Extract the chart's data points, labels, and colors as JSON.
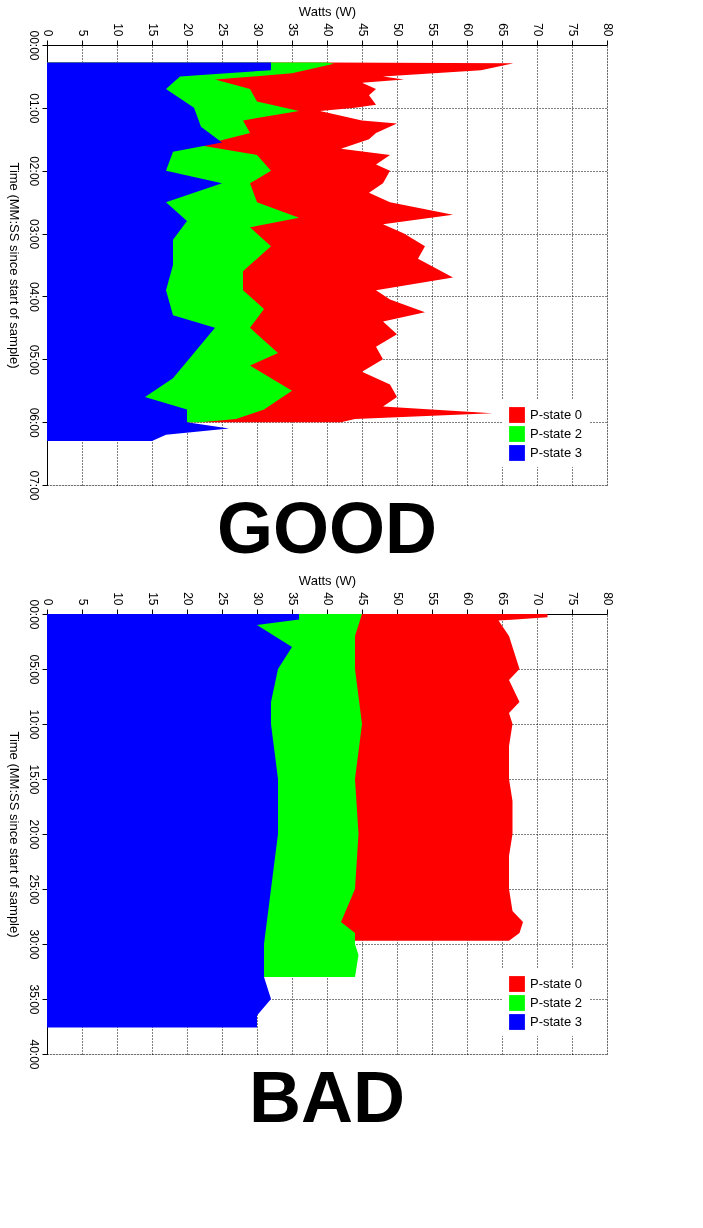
{
  "chart_data": [
    {
      "type": "area",
      "orientation": "horizontal",
      "title": "GOOD",
      "xlabel": "Watts (W)",
      "ylabel": "Time (MM:SS since start of sample)",
      "xlim": [
        0,
        80
      ],
      "xticks": [
        0,
        5,
        10,
        15,
        20,
        25,
        30,
        35,
        40,
        45,
        50,
        55,
        60,
        65,
        70,
        75,
        80
      ],
      "ylim": [
        7,
        0
      ],
      "yticks": [
        {
          "value": 0,
          "label": "00:00"
        },
        {
          "value": 1,
          "label": "01:00"
        },
        {
          "value": 2,
          "label": "02:00"
        },
        {
          "value": 3,
          "label": "03:00"
        },
        {
          "value": 4,
          "label": "04:00"
        },
        {
          "value": 5,
          "label": "05:00"
        },
        {
          "value": 6,
          "label": "06:00"
        },
        {
          "value": 7,
          "label": "07:00"
        }
      ],
      "grid": true,
      "legend": "bottom right",
      "series": [
        {
          "name": "P-state 0",
          "color": "#ff0000",
          "x": [
            0.28,
            0.29,
            0.33,
            0.4,
            0.5,
            0.55,
            0.6,
            0.7,
            0.8,
            0.95,
            1.0,
            1.05,
            1.2,
            1.25,
            1.4,
            1.5,
            1.65,
            1.75,
            1.9,
            2.0,
            2.2,
            2.35,
            2.5,
            2.7,
            2.85,
            3.0,
            3.2,
            3.4,
            3.7,
            3.9,
            4.05,
            4.25,
            4.4,
            4.6,
            4.8,
            5.0,
            5.2,
            5.4,
            5.6,
            5.75,
            5.86,
            5.95,
            6.0
          ],
          "values": [
            40,
            66.6,
            65,
            62,
            48,
            51,
            45,
            47,
            46,
            47,
            44,
            39,
            45,
            50,
            47,
            46,
            42,
            49,
            47,
            49,
            48,
            46,
            49,
            58,
            48,
            51,
            54,
            53,
            58,
            47,
            49,
            54,
            48,
            50,
            47,
            48,
            45,
            49,
            50,
            48,
            63.6,
            44,
            42
          ]
        },
        {
          "name": "P-state 2",
          "color": "#00ff00",
          "x": [
            0.28,
            0.3,
            0.45,
            0.55,
            0.7,
            0.9,
            1.05,
            1.2,
            1.4,
            1.6,
            1.75,
            2.0,
            2.2,
            2.5,
            2.75,
            2.9,
            3.2,
            3.6,
            3.9,
            4.2,
            4.5,
            4.9,
            5.1,
            5.5,
            5.8,
            5.95,
            6.0
          ],
          "values": [
            40,
            41,
            35,
            24,
            29,
            30,
            36,
            28,
            29,
            22,
            30,
            32,
            29,
            30,
            36,
            29,
            32,
            28,
            28,
            31,
            29,
            33,
            29,
            35,
            31,
            27,
            22
          ]
        },
        {
          "name": "P-state 3",
          "color": "#0000ff",
          "x": [
            0.28,
            0.29,
            0.4,
            0.5,
            0.7,
            1.0,
            1.3,
            1.55,
            1.7,
            2.0,
            2.2,
            2.5,
            2.8,
            3.1,
            3.5,
            3.9,
            4.3,
            4.5,
            4.9,
            5.3,
            5.6,
            5.8,
            6.0,
            6.1,
            6.2,
            6.3
          ],
          "values": [
            32,
            32,
            32,
            19,
            17,
            21,
            22,
            25,
            18,
            17,
            25,
            17,
            20,
            18,
            18,
            17,
            18,
            24,
            21,
            18,
            14,
            20,
            20,
            26,
            17,
            15
          ]
        }
      ]
    },
    {
      "type": "area",
      "orientation": "horizontal",
      "title": "BAD",
      "xlabel": "Watts (W)",
      "ylabel": "Time (MM:SS since start of sample)",
      "xlim": [
        0,
        80
      ],
      "xticks": [
        0,
        5,
        10,
        15,
        20,
        25,
        30,
        35,
        40,
        45,
        50,
        55,
        60,
        65,
        70,
        75,
        80
      ],
      "ylim": [
        40,
        0
      ],
      "yticks": [
        {
          "value": 0,
          "label": "00:00"
        },
        {
          "value": 5,
          "label": "05:00"
        },
        {
          "value": 10,
          "label": "10:00"
        },
        {
          "value": 15,
          "label": "15:00"
        },
        {
          "value": 20,
          "label": "20:00"
        },
        {
          "value": 25,
          "label": "25:00"
        },
        {
          "value": 30,
          "label": "30:00"
        },
        {
          "value": 35,
          "label": "35:00"
        },
        {
          "value": 40,
          "label": "40:00"
        }
      ],
      "grid": true,
      "legend": "bottom right",
      "series": [
        {
          "name": "P-state 0",
          "color": "#ff0000",
          "x": [
            0,
            0.3,
            0.6,
            2,
            4,
            5,
            6,
            8,
            9,
            10,
            12,
            15,
            17,
            20,
            22,
            25,
            27,
            28,
            29,
            29.7
          ],
          "values": [
            71.5,
            71.5,
            64.5,
            66,
            67,
            67.5,
            66,
            67.5,
            66,
            66.5,
            66,
            66,
            66.5,
            66.5,
            66,
            66,
            66.5,
            68,
            67.5,
            66
          ]
        },
        {
          "name": "P-state 2",
          "color": "#00ff00",
          "x": [
            0,
            2,
            5,
            10,
            15,
            20,
            25,
            28,
            29,
            30,
            31,
            33
          ],
          "values": [
            45,
            44,
            44,
            45,
            44,
            44.5,
            44,
            42,
            44,
            44,
            44.5,
            44
          ]
        },
        {
          "name": "P-state 3",
          "color": "#0000ff",
          "x": [
            0,
            0.5,
            1,
            3,
            5,
            8,
            10,
            15,
            20,
            25,
            30,
            33,
            35,
            36.5,
            37.6
          ],
          "values": [
            36,
            36,
            30,
            35,
            33,
            32,
            32,
            33,
            33,
            32,
            31,
            31,
            32,
            30,
            30
          ]
        }
      ]
    }
  ]
}
